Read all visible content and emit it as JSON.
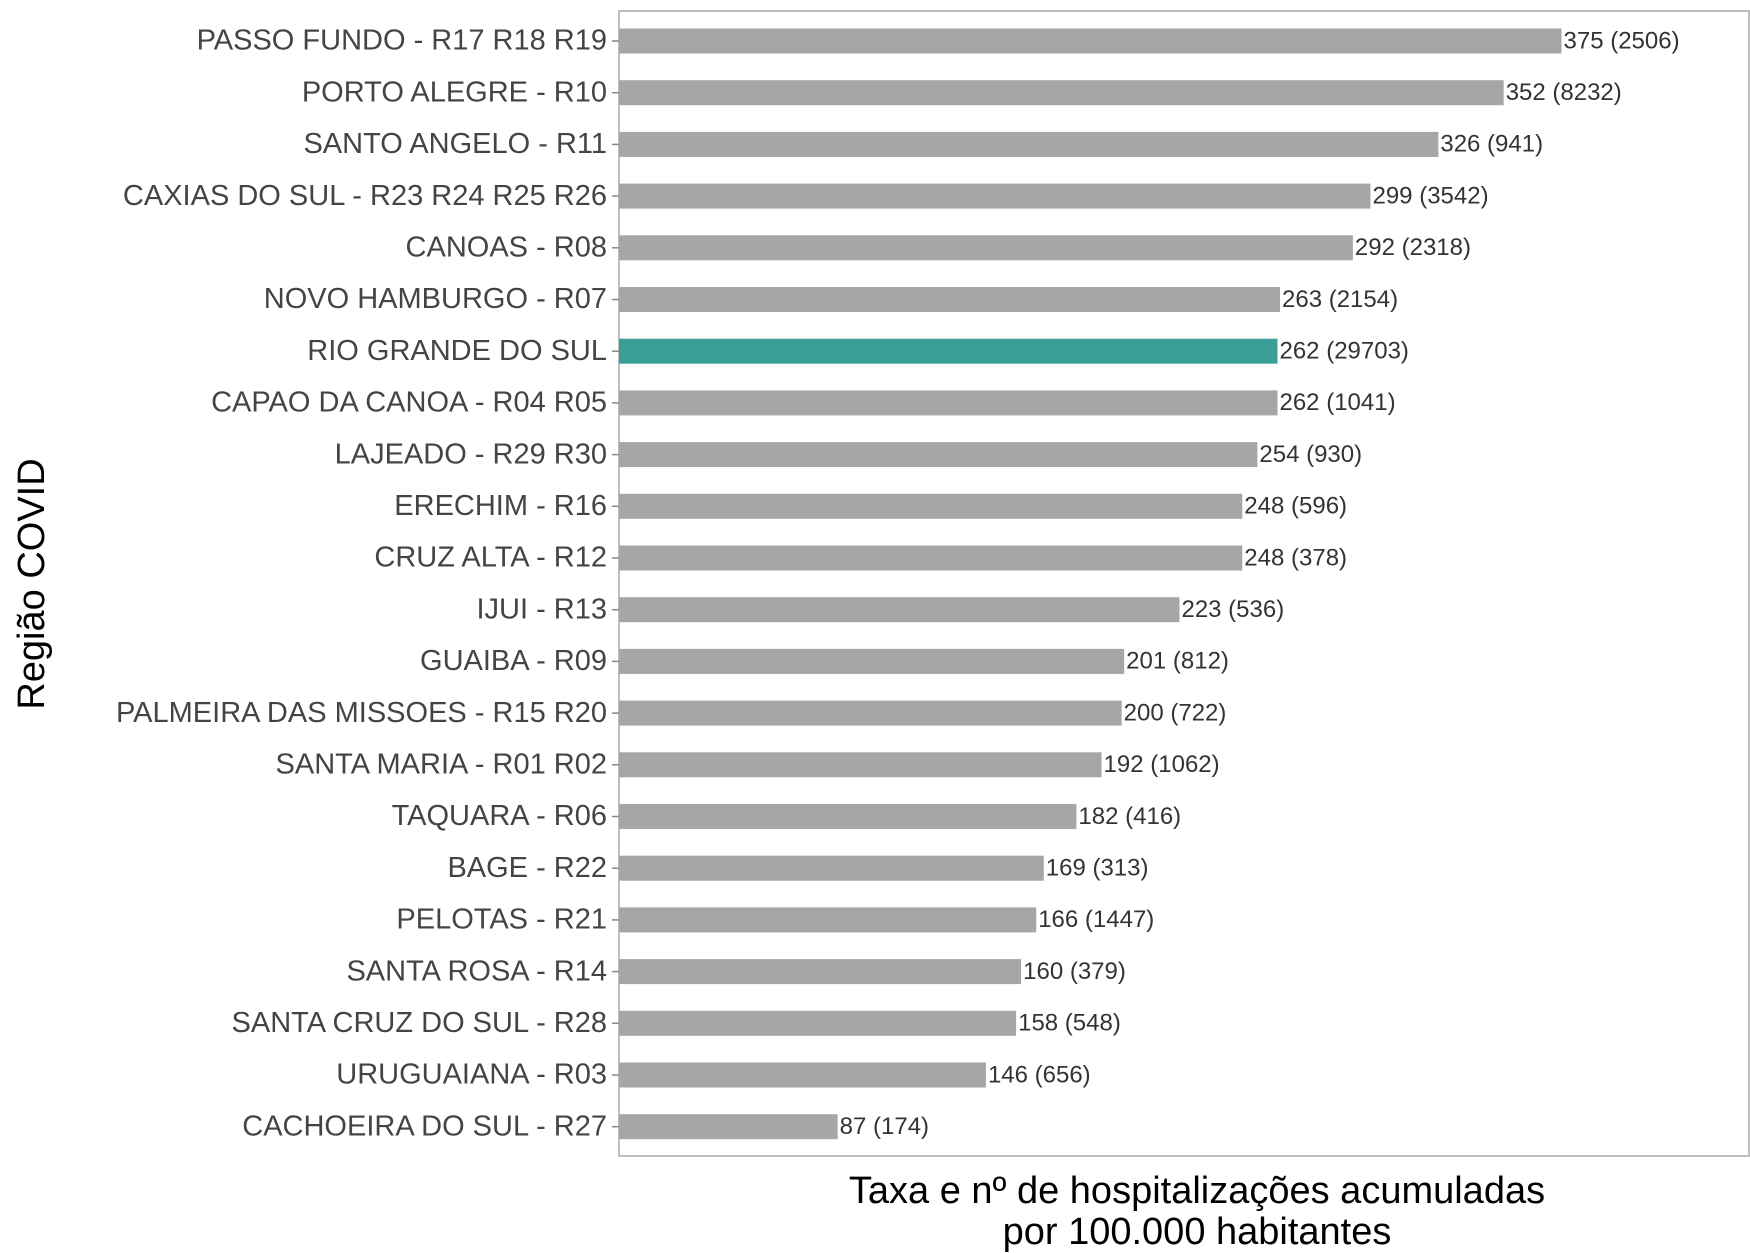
{
  "chart_data": {
    "type": "barh",
    "ylabel": "Região COVID",
    "xlabel": [
      "Taxa e nº de hospitalizações acumuladas",
      "por 100.000 habitantes"
    ],
    "categories": [
      "PASSO FUNDO - R17 R18 R19",
      "PORTO ALEGRE - R10",
      "SANTO ANGELO - R11",
      "CAXIAS DO SUL - R23 R24 R25 R26",
      "CANOAS - R08",
      "NOVO HAMBURGO - R07",
      "RIO GRANDE DO SUL",
      "CAPAO DA CANOA - R04 R05",
      "LAJEADO - R29 R30",
      "ERECHIM - R16",
      "CRUZ ALTA - R12",
      "IJUI - R13",
      "GUAIBA - R09",
      "PALMEIRA DAS MISSOES - R15 R20",
      "SANTA MARIA - R01 R02",
      "TAQUARA - R06",
      "BAGE - R22",
      "PELOTAS - R21",
      "SANTA ROSA - R14",
      "SANTA CRUZ DO SUL - R28",
      "URUGUAIANA - R03",
      "CACHOEIRA DO SUL - R27"
    ],
    "values": [
      375,
      352,
      326,
      299,
      292,
      263,
      262,
      262,
      254,
      248,
      248,
      223,
      201,
      200,
      192,
      182,
      169,
      166,
      160,
      158,
      146,
      87
    ],
    "value_labels": [
      "375 (2506)",
      "352 (8232)",
      "326 (941)",
      "299 (3542)",
      "292 (2318)",
      "263 (2154)",
      "262 (29703)",
      "262 (1041)",
      "254 (930)",
      "248 (596)",
      "248 (378)",
      "223 (536)",
      "201 (812)",
      "200 (722)",
      "192 (1062)",
      "182 (416)",
      "169 (313)",
      "166 (1447)",
      "160 (379)",
      "158 (548)",
      "146 (656)",
      "87 (174)"
    ],
    "colors": [
      "#a6a6a6",
      "#a6a6a6",
      "#a6a6a6",
      "#a6a6a6",
      "#a6a6a6",
      "#a6a6a6",
      "#3a9e96",
      "#a6a6a6",
      "#a6a6a6",
      "#a6a6a6",
      "#a6a6a6",
      "#a6a6a6",
      "#a6a6a6",
      "#a6a6a6",
      "#a6a6a6",
      "#a6a6a6",
      "#a6a6a6",
      "#a6a6a6",
      "#a6a6a6",
      "#a6a6a6",
      "#a6a6a6",
      "#a6a6a6"
    ],
    "xlim": [
      0,
      450
    ]
  }
}
